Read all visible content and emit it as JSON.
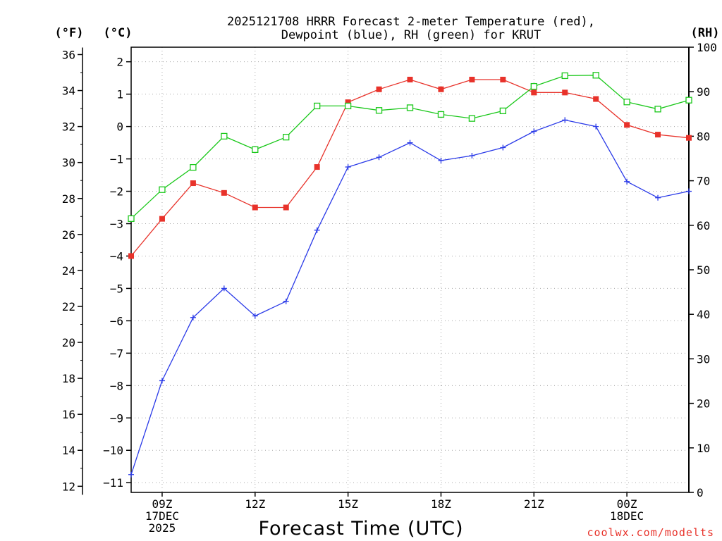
{
  "chart_data": {
    "type": "line",
    "title_lines": [
      "2025121708 HRRR Forecast 2-meter Temperature (red),",
      "Dewpoint (blue), RH (green) for KRUT"
    ],
    "xlabel": "Forecast Time (UTC)",
    "credit": "coolwx.com/modelts",
    "units": {
      "fahrenheit": "(°F)",
      "celsius": "(°C)",
      "rh": "(RH)"
    },
    "x_hours": [
      0,
      1,
      2,
      3,
      4,
      5,
      6,
      7,
      8,
      9,
      10,
      11,
      12,
      13,
      14,
      15,
      16,
      17,
      18
    ],
    "x_range_hours": [
      0,
      18
    ],
    "x_ticks": [
      {
        "hour": 1,
        "lines": [
          "09Z",
          "17DEC",
          "2025"
        ]
      },
      {
        "hour": 4,
        "lines": [
          "12Z"
        ]
      },
      {
        "hour": 7,
        "lines": [
          "15Z"
        ]
      },
      {
        "hour": 10,
        "lines": [
          "18Z"
        ]
      },
      {
        "hour": 13,
        "lines": [
          "21Z"
        ]
      },
      {
        "hour": 16,
        "lines": [
          "00Z",
          "18DEC"
        ]
      }
    ],
    "y_celsius_range": [
      -11.3,
      2.45
    ],
    "y_celsius_ticks": [
      2,
      1,
      0,
      -1,
      -2,
      -3,
      -4,
      -5,
      -6,
      -7,
      -8,
      -9,
      -10,
      -11
    ],
    "y_fahrenheit_ticks": [
      36,
      34,
      32,
      30,
      28,
      26,
      24,
      22,
      20,
      18,
      16,
      14,
      12
    ],
    "y_rh_range": [
      0,
      100
    ],
    "y_rh_ticks": [
      100,
      90,
      80,
      70,
      60,
      50,
      40,
      30,
      20,
      10,
      0
    ],
    "series": [
      {
        "name": "Temperature",
        "axis": "celsius",
        "color": "#e8322a",
        "marker": "filled-square",
        "values": [
          -4.0,
          -2.85,
          -1.75,
          -2.05,
          -2.5,
          -2.5,
          -1.25,
          0.75,
          1.15,
          1.45,
          1.15,
          1.45,
          1.45,
          1.05,
          1.05,
          0.85,
          0.05,
          -0.25,
          -0.35
        ]
      },
      {
        "name": "Dewpoint",
        "axis": "celsius",
        "color": "#2a3ae8",
        "marker": "plus",
        "values": [
          -10.75,
          -7.85,
          -5.9,
          -5.0,
          -5.85,
          -5.4,
          -3.2,
          -1.25,
          -0.95,
          -0.5,
          -1.05,
          -0.9,
          -0.65,
          -0.15,
          0.2,
          0.0,
          -1.7,
          -2.2,
          -2.0
        ]
      },
      {
        "name": "RH",
        "axis": "rh",
        "color": "#1ac81a",
        "marker": "open-square",
        "values": [
          61.5,
          68.0,
          73.0,
          80.0,
          77.0,
          79.8,
          86.8,
          86.8,
          85.8,
          86.4,
          84.9,
          84.0,
          85.7,
          91.2,
          93.6,
          93.7,
          87.7,
          86.1,
          88.1
        ]
      }
    ]
  }
}
